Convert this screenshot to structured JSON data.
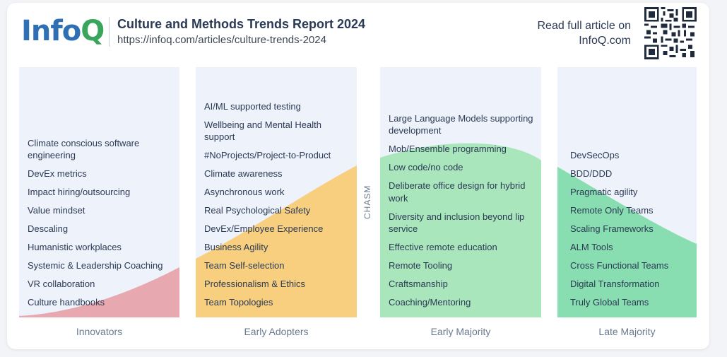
{
  "header": {
    "logo_info": "Info",
    "logo_q": "Q",
    "title": "Culture and Methods Trends Report 2024",
    "url": "https://infoq.com/articles/culture-trends-2024",
    "read_line1": "Read full article on",
    "read_line2": "InfoQ.com"
  },
  "chasm_label": "CHASM",
  "colors": {
    "innovators": "#e8a8b0",
    "early_adopters": "#f8cf7e",
    "early_majority": "#a9e6bc",
    "late_majority": "#88deb0",
    "panel_bg": "#eef2fb"
  },
  "columns": [
    {
      "label": "Innovators",
      "items": [
        "Climate conscious software engineering",
        "DevEx metrics",
        "Impact hiring/outsourcing",
        "Value mindset",
        "Descaling",
        "Humanistic workplaces",
        "Systemic & Leadership Coaching",
        "VR collaboration",
        "Culture handbooks"
      ]
    },
    {
      "label": "Early Adopters",
      "items": [
        "AI/ML supported testing",
        "Wellbeing and Mental Health support",
        "#NoProjects/Project-to-Product",
        "Climate awareness",
        "Asynchronous work",
        "Real Psychological Safety",
        "DevEx/Employee Experience",
        "Business Agility",
        "Team Self-selection",
        "Professionalism & Ethics",
        "Team Topologies"
      ]
    },
    {
      "label": "Early Majority",
      "items": [
        "Large Language Models supporting development",
        "Mob/Ensemble programming",
        "Low code/no code",
        "Deliberate office design for hybrid work",
        "Diversity and inclusion beyond lip service",
        "Effective remote education",
        "Remote Tooling",
        "Craftsmanship",
        "Coaching/Mentoring"
      ]
    },
    {
      "label": "Late Majority",
      "items": [
        "DevSecOps",
        "BDD/DDD",
        "Pragmatic agility",
        "Remote Only Teams",
        "Scaling Frameworks",
        "ALM Tools",
        "Cross Functional Teams",
        "Digital Transformation",
        "Truly Global Teams"
      ]
    }
  ]
}
